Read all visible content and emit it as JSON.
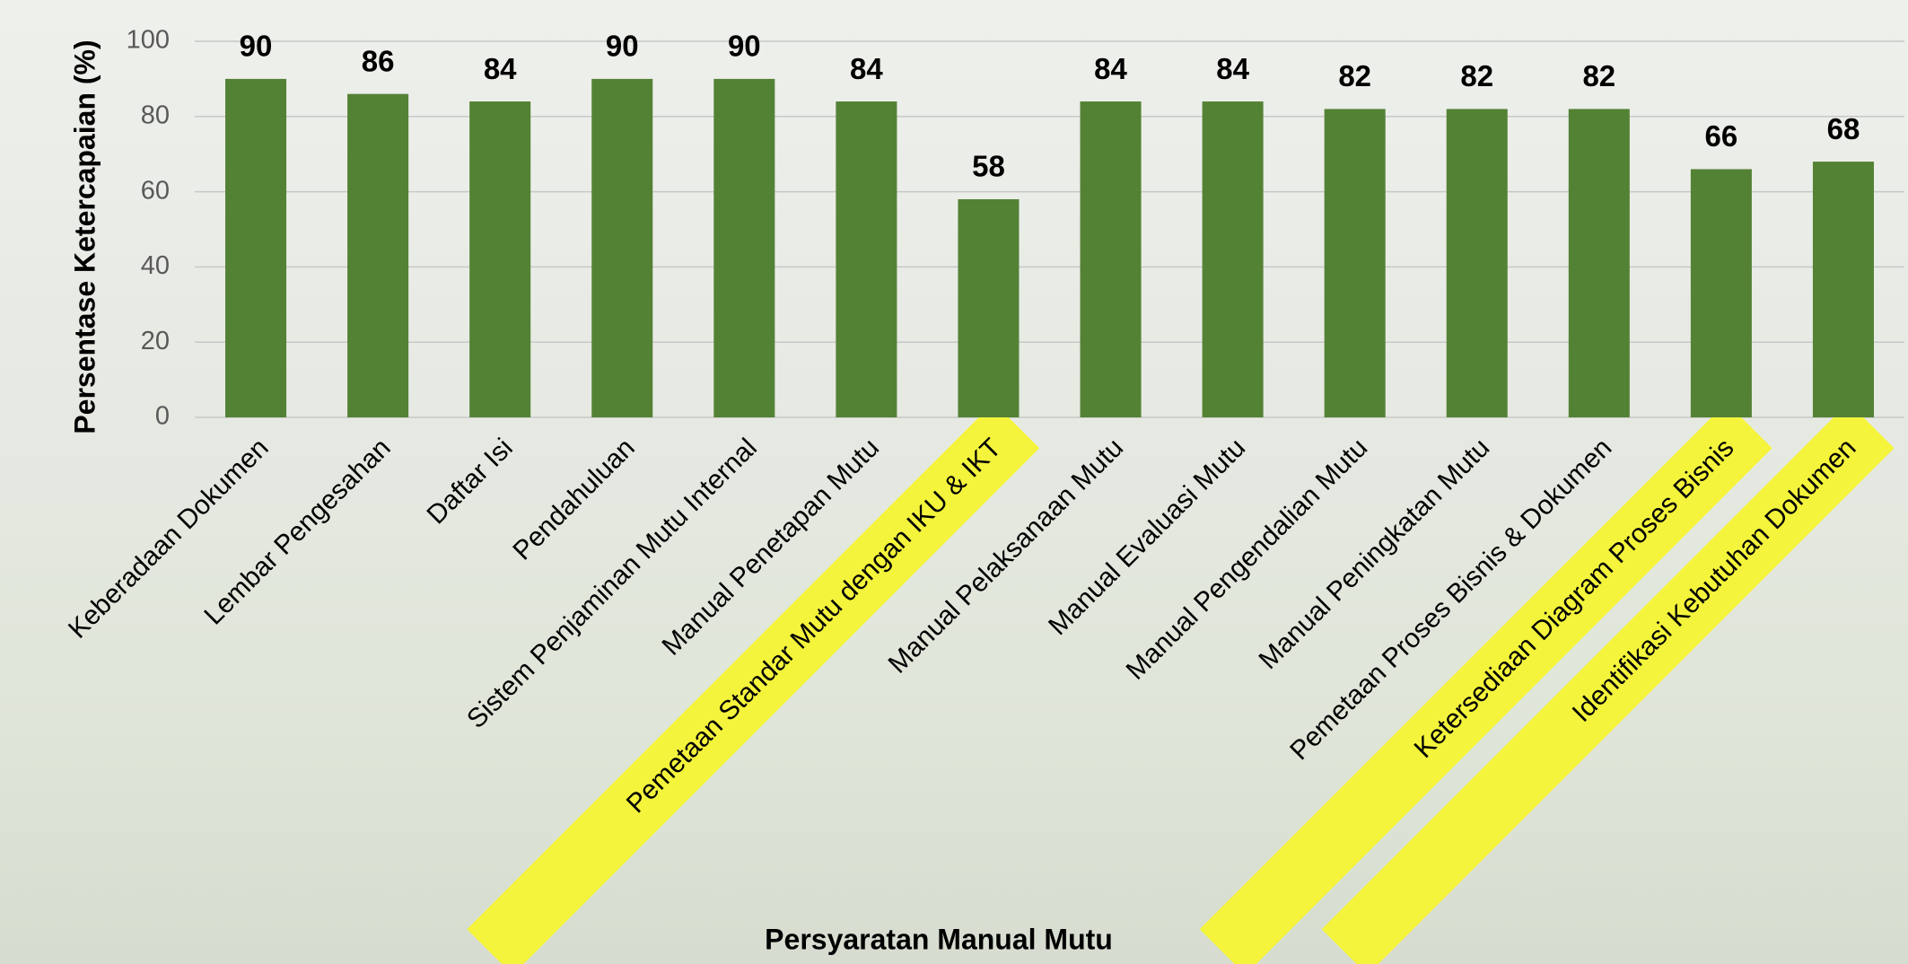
{
  "chart_data": {
    "type": "bar",
    "x_label": "Persyaratan Manual Mutu",
    "y_label": "Persentase Ketercapaian (%)",
    "categories": [
      "Keberadaan Dokumen",
      "Lembar Pengesahan",
      "Daftar Isi",
      "Pendahuluan",
      "Sistem Penjaminan Mutu Internal",
      "Manual Penetapan Mutu",
      "Pemetaan Standar Mutu dengan IKU & IKT",
      "Manual Pelaksanaan Mutu",
      "Manual Evaluasi Mutu",
      "Manual Pengendalian Mutu",
      "Manual Peningkatan Mutu",
      "Pemetaan Proses Bisnis & Dokumen",
      "Ketersediaan Diagram Proses Bisnis",
      "Identifikasi Kebutuhan Dokumen"
    ],
    "values": [
      90,
      86,
      84,
      90,
      90,
      84,
      58,
      84,
      84,
      82,
      82,
      82,
      66,
      68
    ],
    "color": "#548235",
    "highlighted": [
      6,
      12,
      13
    ],
    "highlight_color": "#f4f43c",
    "ylim": [
      0,
      100
    ],
    "yticks": [
      0,
      20,
      40,
      60,
      80,
      100
    ],
    "grid": true
  }
}
